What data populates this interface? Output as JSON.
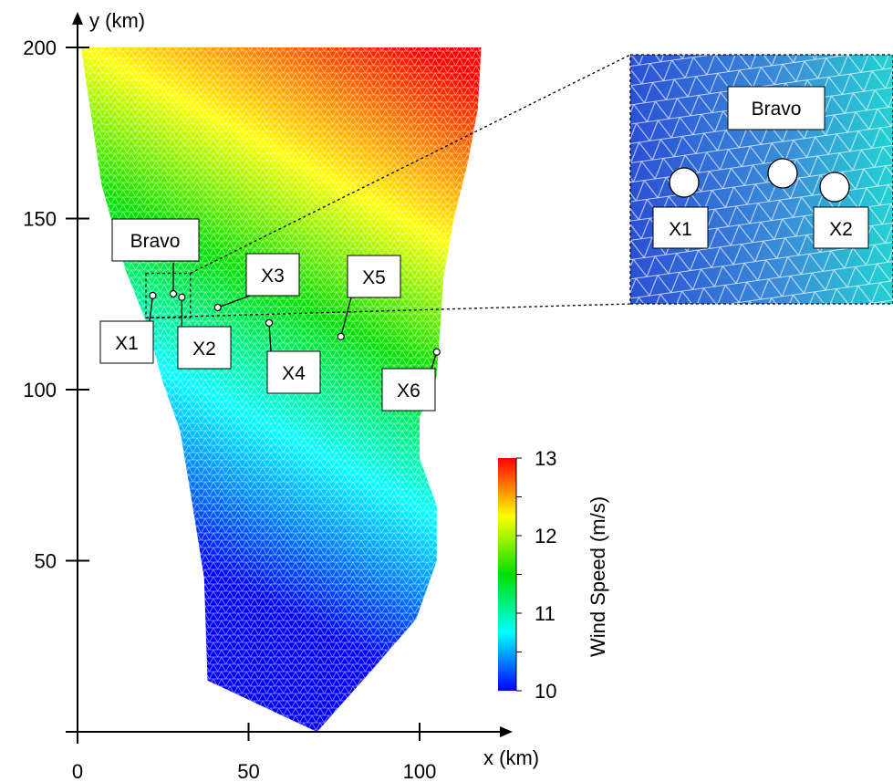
{
  "chart_data": {
    "type": "heatmap",
    "x_axis": {
      "label": "x (km)",
      "ticks": [
        0,
        50,
        100
      ],
      "tick_labels": [
        "0",
        "50",
        "100"
      ],
      "range": [
        0,
        125
      ]
    },
    "y_axis": {
      "label": "y (km)",
      "ticks": [
        50,
        100,
        150,
        200
      ],
      "tick_labels": [
        "50",
        "100",
        "150",
        "200"
      ],
      "range": [
        0,
        210
      ]
    },
    "domain_outline_km": [
      [
        1,
        200
      ],
      [
        118,
        200
      ],
      [
        117,
        182
      ],
      [
        114,
        166
      ],
      [
        110,
        150
      ],
      [
        107,
        133
      ],
      [
        106,
        118
      ],
      [
        105,
        104
      ],
      [
        100,
        92
      ],
      [
        100,
        80
      ],
      [
        105,
        66
      ],
      [
        105,
        50
      ],
      [
        99,
        33
      ],
      [
        86,
        18
      ],
      [
        70,
        0
      ],
      [
        38,
        15
      ],
      [
        37,
        45
      ],
      [
        33,
        70
      ],
      [
        30,
        88
      ],
      [
        25,
        102
      ],
      [
        20,
        120
      ],
      [
        14,
        135
      ],
      [
        7,
        160
      ],
      [
        1,
        200
      ]
    ],
    "colorbar": {
      "label": "Wind Speed (m/s)",
      "min": 10,
      "max": 13,
      "ticks": [
        10,
        11,
        12,
        13
      ],
      "tick_labels": [
        "10",
        "11",
        "12",
        "13"
      ],
      "colors": [
        "#0000ff",
        "#00ffff",
        "#00e000",
        "#ffff00",
        "#ff0000"
      ]
    },
    "points": [
      {
        "name": "X1",
        "x": 22,
        "y": 127.5
      },
      {
        "name": "X2",
        "x": 30.5,
        "y": 127
      },
      {
        "name": "X3",
        "x": 41,
        "y": 124
      },
      {
        "name": "X4",
        "x": 56,
        "y": 119.5
      },
      {
        "name": "X5",
        "x": 77,
        "y": 115.5
      },
      {
        "name": "X6",
        "x": 105,
        "y": 111
      }
    ],
    "site": {
      "name": "Bravo",
      "x": 28,
      "y": 128
    },
    "inset": {
      "title": "Bravo",
      "labels": [
        "X1",
        "X2"
      ],
      "source_region_km": {
        "x": [
          20,
          33
        ],
        "y": [
          121,
          134
        ]
      }
    }
  }
}
